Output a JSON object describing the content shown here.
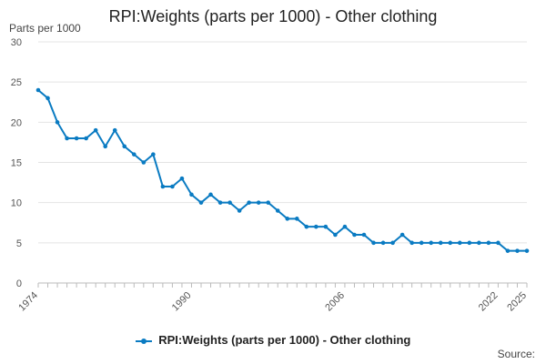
{
  "chart_data": {
    "type": "line",
    "title": "RPI:Weights (parts per 1000) - Other clothing",
    "ylabel": "Parts per 1000",
    "xlabel": "",
    "x": [
      1974,
      1975,
      1976,
      1977,
      1978,
      1979,
      1980,
      1981,
      1982,
      1983,
      1984,
      1985,
      1986,
      1987,
      1988,
      1989,
      1990,
      1991,
      1992,
      1993,
      1994,
      1995,
      1996,
      1997,
      1998,
      1999,
      2000,
      2001,
      2002,
      2003,
      2004,
      2005,
      2006,
      2007,
      2008,
      2009,
      2010,
      2011,
      2012,
      2013,
      2014,
      2015,
      2016,
      2017,
      2018,
      2019,
      2020,
      2021,
      2022,
      2023,
      2024,
      2025
    ],
    "series": [
      {
        "name": "RPI:Weights (parts per 1000) - Other clothing",
        "values": [
          24,
          23,
          20,
          18,
          18,
          18,
          19,
          17,
          19,
          17,
          16,
          15,
          16,
          12,
          12,
          13,
          11,
          10,
          11,
          10,
          10,
          9,
          10,
          10,
          10,
          9,
          8,
          8,
          7,
          7,
          7,
          6,
          7,
          6,
          6,
          5,
          5,
          5,
          6,
          5,
          5,
          5,
          5,
          5,
          5,
          5,
          5,
          5,
          5,
          4,
          4,
          4
        ]
      }
    ],
    "x_tick_labels": [
      "1974",
      "1990",
      "2006",
      "2022",
      "2025"
    ],
    "y_ticks": [
      0,
      5,
      10,
      15,
      20,
      25,
      30
    ],
    "ylim": [
      0,
      30
    ],
    "xlim": [
      1974,
      2025
    ],
    "grid": true,
    "legend_position": "bottom",
    "color": "#0a7bc2"
  },
  "footer": {
    "source_label": "Source:"
  }
}
